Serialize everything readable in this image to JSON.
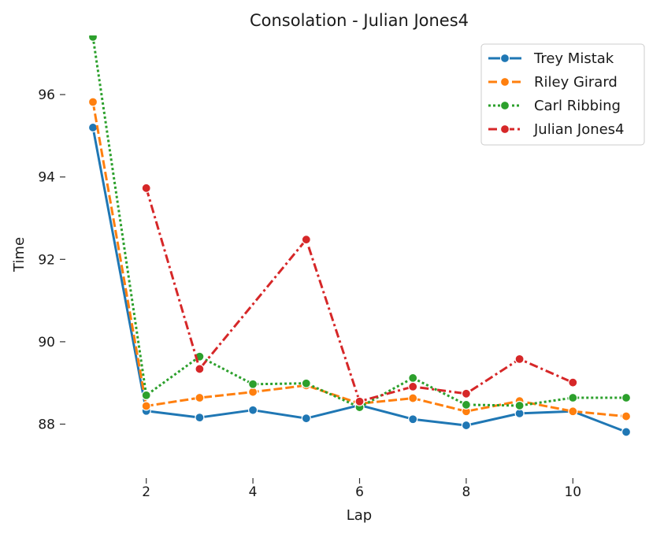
{
  "chart_data": {
    "type": "line",
    "title": "Consolation - Julian Jones4",
    "xlabel": "Lap",
    "ylabel": "Time",
    "xlim": [
      0.5,
      11.2
    ],
    "ylim": [
      87.0,
      97.5
    ],
    "x_ticks": [
      "2",
      "4",
      "6",
      "8",
      "10"
    ],
    "y_ticks": [
      "88",
      "90",
      "92",
      "94",
      "96"
    ],
    "grid": false,
    "legend_position": "top-right",
    "series": [
      {
        "name": "Trey Mistak",
        "color": "#1f77b4",
        "dash": "solid",
        "x": [
          1,
          2,
          3,
          4,
          5,
          6,
          7,
          8,
          9,
          10,
          11
        ],
        "values": [
          95.2,
          88.32,
          88.16,
          88.34,
          88.14,
          88.46,
          88.12,
          87.97,
          88.26,
          88.31,
          87.81
        ]
      },
      {
        "name": "Riley Girard",
        "color": "#ff7f0e",
        "dash": "dashed",
        "x": [
          1,
          2,
          3,
          4,
          5,
          6,
          7,
          8,
          9,
          10,
          11
        ],
        "values": [
          95.82,
          88.44,
          88.64,
          88.78,
          88.94,
          88.5,
          88.63,
          88.31,
          88.56,
          88.31,
          88.19
        ]
      },
      {
        "name": "Carl Ribbing",
        "color": "#2ca02c",
        "dash": "dotted",
        "x": [
          1,
          2,
          3,
          4,
          5,
          6,
          7,
          8,
          9,
          10,
          11
        ],
        "values": [
          97.4,
          88.7,
          89.64,
          88.97,
          88.99,
          88.41,
          89.12,
          88.47,
          88.45,
          88.64,
          88.64
        ]
      },
      {
        "name": "Julian Jones4",
        "color": "#d62728",
        "dash": "dashdot",
        "x": [
          2,
          3,
          5,
          6,
          7,
          8,
          9,
          10
        ],
        "values": [
          93.73,
          89.34,
          92.48,
          88.55,
          88.91,
          88.74,
          89.58,
          89.01
        ]
      }
    ]
  }
}
